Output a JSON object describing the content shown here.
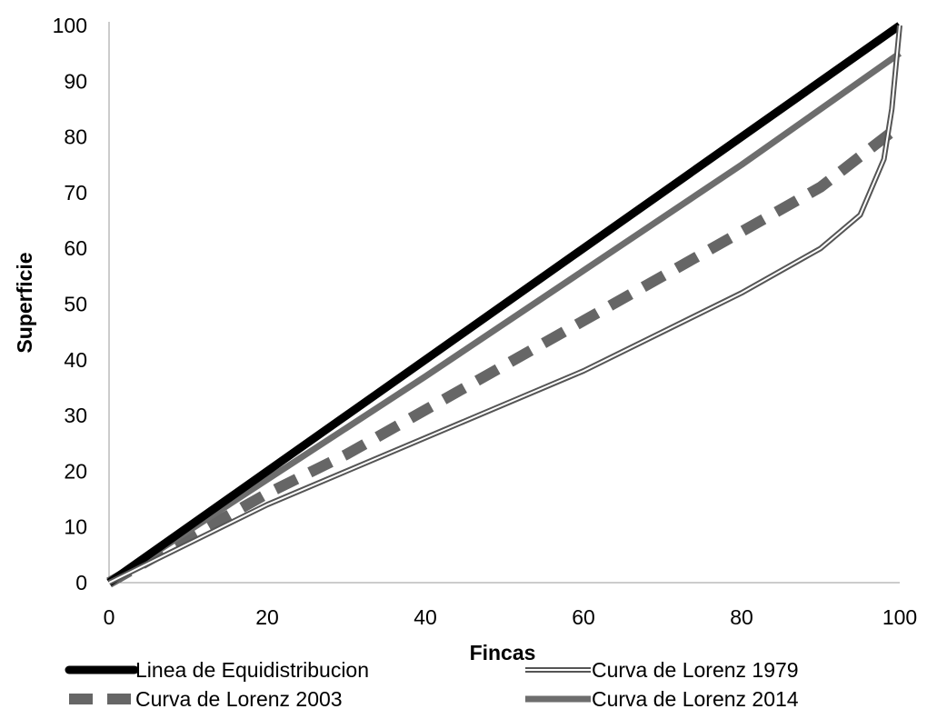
{
  "chart_data": {
    "type": "line",
    "title": "",
    "xlabel": "Fincas",
    "ylabel": "Superficie",
    "xlim": [
      0,
      100
    ],
    "ylim": [
      0,
      100
    ],
    "x_ticks": [
      0,
      20,
      40,
      60,
      80,
      100
    ],
    "y_ticks": [
      0,
      10,
      20,
      30,
      40,
      50,
      60,
      70,
      80,
      90,
      100
    ],
    "grid": false,
    "legend_position": "bottom",
    "series": [
      {
        "name": "Linea de Equidistribucion",
        "style": "thick-solid",
        "color": "#000000",
        "x": [
          0,
          100
        ],
        "y": [
          0,
          100
        ]
      },
      {
        "name": "Curva de Lorenz 1979",
        "style": "double-line",
        "color": "#555555",
        "x": [
          0,
          10,
          20,
          30,
          40,
          50,
          60,
          70,
          80,
          90,
          95,
          98,
          99,
          100
        ],
        "y": [
          0,
          7,
          14,
          20,
          26,
          32,
          38,
          45,
          52,
          60,
          66,
          76,
          85,
          100
        ]
      },
      {
        "name": "Curva de Lorenz 2003",
        "style": "dashed",
        "color": "#666666",
        "x": [
          0,
          10,
          20,
          30,
          40,
          50,
          60,
          70,
          80,
          90,
          100
        ],
        "y": [
          0,
          8,
          16,
          23,
          31,
          39,
          47,
          55,
          63,
          71,
          82
        ]
      },
      {
        "name": "Curva de Lorenz 2014",
        "style": "solid",
        "color": "#6d6d6d",
        "x": [
          0,
          20,
          40,
          60,
          80,
          100
        ],
        "y": [
          0,
          18.5,
          37,
          56,
          75,
          95
        ]
      }
    ]
  }
}
